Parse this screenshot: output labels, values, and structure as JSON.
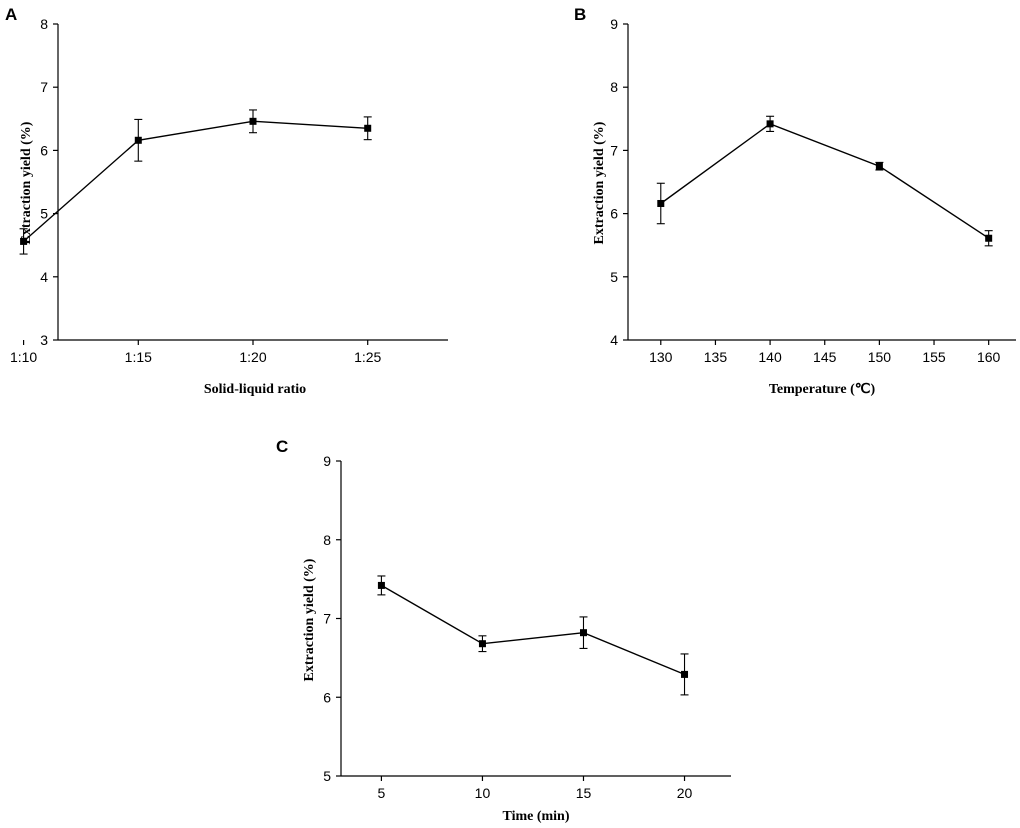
{
  "chart_data": [
    {
      "panel": "A",
      "type": "line",
      "categories": [
        "1:10",
        "1:15",
        "1:20",
        "1:25"
      ],
      "values": [
        4.56,
        6.16,
        6.46,
        6.35
      ],
      "errors": [
        0.2,
        0.33,
        0.18,
        0.18
      ],
      "xlabel": "Solid-liquid ratio",
      "ylabel": "Extraction yield (%)",
      "ylim": [
        3,
        8
      ],
      "yticks": [
        "3",
        "4",
        "5",
        "6",
        "7",
        "8"
      ],
      "marker": "square",
      "color": "#000000"
    },
    {
      "panel": "B",
      "type": "line",
      "x": [
        130,
        140,
        150,
        160
      ],
      "values": [
        6.16,
        7.42,
        6.75,
        5.61
      ],
      "errors": [
        0.32,
        0.12,
        0.06,
        0.12
      ],
      "xlabel": "Temperature (℃)",
      "ylabel": "Extraction yield (%)",
      "xlim": [
        127,
        162.5
      ],
      "xticks": [
        "130",
        "135",
        "140",
        "145",
        "150",
        "155",
        "160"
      ],
      "ylim": [
        4,
        9
      ],
      "yticks": [
        "4",
        "5",
        "6",
        "7",
        "8",
        "9"
      ],
      "marker": "square",
      "color": "#000000"
    },
    {
      "panel": "C",
      "type": "line",
      "x": [
        5,
        10,
        15,
        20
      ],
      "values": [
        7.42,
        6.68,
        6.82,
        6.29
      ],
      "errors": [
        0.12,
        0.1,
        0.2,
        0.26
      ],
      "xlabel": "Time (min)",
      "ylabel": "Extraction yield (%)",
      "xlim": [
        3,
        22.3
      ],
      "xticks": [
        "5",
        "10",
        "15",
        "20"
      ],
      "ylim": [
        5,
        9
      ],
      "yticks": [
        "5",
        "6",
        "7",
        "8",
        "9"
      ],
      "marker": "square",
      "color": "#000000"
    }
  ]
}
